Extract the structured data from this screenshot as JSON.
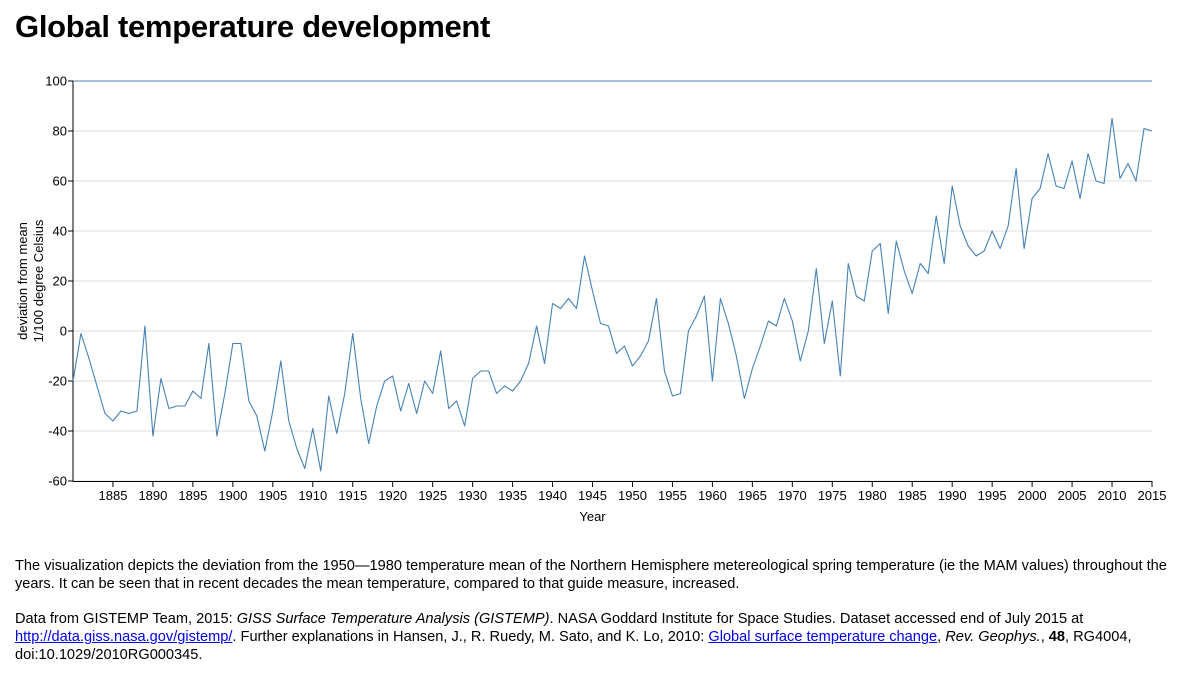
{
  "title": "Global temperature development",
  "chart_data": {
    "type": "line",
    "xlabel": "Year",
    "ylabel": [
      "deviation from mean",
      "1/100 degree Celsius"
    ],
    "xlim": [
      1880,
      2015
    ],
    "ylim": [
      -60,
      100
    ],
    "yticks": [
      -60,
      -40,
      -20,
      0,
      20,
      40,
      60,
      80,
      100
    ],
    "xticks": [
      1885,
      1890,
      1895,
      1900,
      1905,
      1910,
      1915,
      1920,
      1925,
      1930,
      1935,
      1940,
      1945,
      1950,
      1955,
      1960,
      1965,
      1970,
      1975,
      1980,
      1985,
      1990,
      1995,
      2000,
      2005,
      2010,
      2015
    ],
    "grid": "horizontal",
    "line_color": "#4682b4",
    "x": [
      1880,
      1881,
      1882,
      1883,
      1884,
      1885,
      1886,
      1887,
      1888,
      1889,
      1890,
      1891,
      1892,
      1893,
      1894,
      1895,
      1896,
      1897,
      1898,
      1899,
      1900,
      1901,
      1902,
      1903,
      1904,
      1905,
      1906,
      1907,
      1908,
      1909,
      1910,
      1911,
      1912,
      1913,
      1914,
      1915,
      1916,
      1917,
      1918,
      1919,
      1920,
      1921,
      1922,
      1923,
      1924,
      1925,
      1926,
      1927,
      1928,
      1929,
      1930,
      1931,
      1932,
      1933,
      1934,
      1935,
      1936,
      1937,
      1938,
      1939,
      1940,
      1941,
      1942,
      1943,
      1944,
      1945,
      1946,
      1947,
      1948,
      1949,
      1950,
      1951,
      1952,
      1953,
      1954,
      1955,
      1956,
      1957,
      1958,
      1959,
      1960,
      1961,
      1962,
      1963,
      1964,
      1965,
      1966,
      1967,
      1968,
      1969,
      1970,
      1971,
      1972,
      1973,
      1974,
      1975,
      1976,
      1977,
      1978,
      1979,
      1980,
      1981,
      1982,
      1983,
      1984,
      1985,
      1986,
      1987,
      1988,
      1989,
      1990,
      1991,
      1992,
      1993,
      1994,
      1995,
      1996,
      1997,
      1998,
      1999,
      2000,
      2001,
      2002,
      2003,
      2004,
      2005,
      2006,
      2007,
      2008,
      2009,
      2010,
      2011,
      2012,
      2013,
      2014,
      2015
    ],
    "y": [
      -20,
      -1,
      -11,
      -22,
      -33,
      -36,
      -32,
      -33,
      -32,
      2,
      -42,
      -19,
      -31,
      -30,
      -30,
      -24,
      -27,
      -5,
      -42,
      -25,
      -5,
      -5,
      -28,
      -34,
      -48,
      -32,
      -12,
      -36,
      -47,
      -55,
      -39,
      -56,
      -26,
      -41,
      -25,
      -1,
      -27,
      -45,
      -30,
      -20,
      -18,
      -32,
      -21,
      -33,
      -20,
      -25,
      -8,
      -31,
      -28,
      -38,
      -19,
      -16,
      -16,
      -25,
      -22,
      -24,
      -20,
      -13,
      2,
      -13,
      11,
      9,
      13,
      9,
      30,
      16,
      3,
      2,
      -9,
      -6,
      -14,
      -10,
      -4,
      13,
      -16,
      -26,
      -25,
      0,
      6,
      14,
      -20,
      13,
      3,
      -10,
      -27,
      -15,
      -6,
      4,
      2,
      13,
      4,
      -12,
      0,
      25,
      -5,
      12,
      -18,
      27,
      14,
      12,
      32,
      35,
      7,
      36,
      24,
      15,
      27,
      23,
      46,
      27,
      58,
      42,
      34,
      30,
      32,
      40,
      33,
      42,
      65,
      33,
      53,
      57,
      71,
      58,
      57,
      68,
      53,
      71,
      60,
      59,
      85,
      61,
      67,
      60,
      81,
      80
    ]
  },
  "description": "The visualization depicts the deviation from the 1950—1980 temperature mean of the Northern Hemisphere metereological spring temperature (ie the MAM values) throughout the years. It can be seen that in recent decades the mean temperature, compared to that guide measure, increased.",
  "source": {
    "prefix": "Data from GISTEMP Team, 2015: ",
    "title": "GISS Surface Temperature Analysis (GISTEMP)",
    "mid": ". NASA Goddard Institute for Space Studies. Dataset accessed end of July 2015 at ",
    "link": "http://data.giss.nasa.gov/gistemp/",
    "mid2": ". Further explanations in Hansen, J., R. Ruedy, M. Sato, and K. Lo, 2010: ",
    "link2": "Global surface temperature change",
    "comma": ", ",
    "journal": "Rev. Geophys.",
    "comma2": ", ",
    "volume": "48",
    "tail": ", RG4004, doi:10.1029/2010RG000345."
  }
}
